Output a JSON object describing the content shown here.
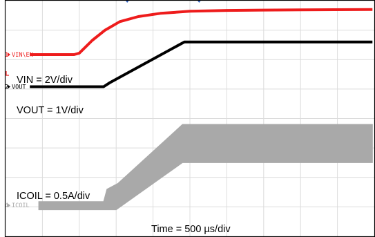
{
  "chart_data": {
    "type": "line",
    "grid": true,
    "divisions": {
      "x": 10,
      "y": 8
    },
    "timebase": "Time = 500 µs/div",
    "scale_labels": [
      {
        "channel": "VIN\\EN",
        "text": "VIN = 2V/div"
      },
      {
        "channel": "VOUT",
        "text": "VOUT = 1V/div"
      },
      {
        "channel": "ICOIL",
        "text": "ICOIL = 0.5A/div"
      }
    ],
    "x_unit": "div",
    "y_unit": "div",
    "series": [
      {
        "channel": "VIN\\EN",
        "marker": "1",
        "color": "#ee1c1c",
        "points": [
          [
            0.66,
            6.17
          ],
          [
            1.86,
            6.17
          ],
          [
            2.0,
            6.22
          ],
          [
            2.35,
            6.65
          ],
          [
            2.7,
            7.0
          ],
          [
            3.1,
            7.29
          ],
          [
            3.6,
            7.46
          ],
          [
            4.2,
            7.57
          ],
          [
            5.0,
            7.64
          ],
          [
            6.0,
            7.67
          ],
          [
            7.0,
            7.68
          ],
          [
            8.0,
            7.69
          ],
          [
            9.95,
            7.7
          ]
        ]
      },
      {
        "channel": "VOUT",
        "marker": "2",
        "color": "#000000",
        "points": [
          [
            0.66,
            5.08
          ],
          [
            2.66,
            5.08
          ],
          [
            2.82,
            5.21
          ],
          [
            4.85,
            6.6
          ],
          [
            9.95,
            6.6
          ]
        ]
      },
      {
        "channel": "ICOIL",
        "marker": "4",
        "color": "#a9a9a9",
        "lower": [
          [
            0.9,
            0.9
          ],
          [
            2.7,
            0.9
          ],
          [
            3.0,
            0.9
          ],
          [
            4.8,
            2.5
          ],
          [
            9.95,
            2.5
          ]
        ],
        "upper": [
          [
            0.9,
            1.18
          ],
          [
            2.66,
            1.18
          ],
          [
            2.75,
            1.6
          ],
          [
            3.05,
            1.8
          ],
          [
            4.8,
            3.8
          ],
          [
            9.95,
            3.8
          ]
        ]
      }
    ]
  }
}
